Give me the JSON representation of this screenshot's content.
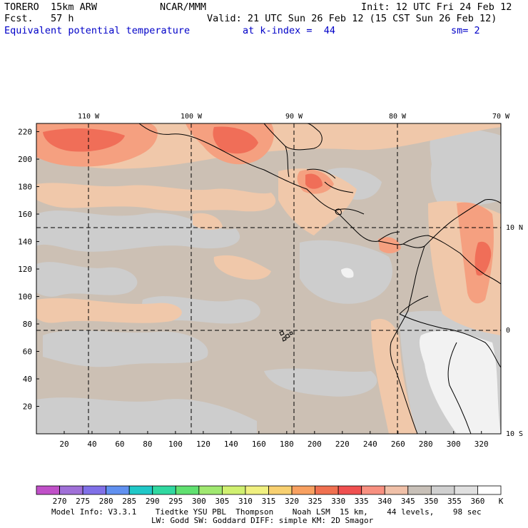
{
  "header": {
    "model": "TORERO  15km ARW",
    "org": "NCAR/MMM",
    "init": "Init: 12 UTC Fri 24 Feb 12",
    "fcst": "Fcst.   57 h",
    "valid": "Valid: 21 UTC Sun 26 Feb 12 (15 CST Sun 26 Feb 12)",
    "field": "Equivalent potential temperature",
    "level": "at k-index =  44",
    "smooth": "sm= 2"
  },
  "map": {
    "longitude_labels": [
      "110 W",
      "100 W",
      "90 W",
      "80 W",
      "70 W"
    ],
    "latitude_labels": [
      "10 N",
      "0",
      "10 S"
    ],
    "x_ticks": [
      "20",
      "40",
      "60",
      "80",
      "100",
      "120",
      "140",
      "160",
      "180",
      "200",
      "220",
      "240",
      "260",
      "280",
      "300",
      "320"
    ],
    "y_ticks": [
      "20",
      "40",
      "60",
      "80",
      "100",
      "120",
      "140",
      "160",
      "180",
      "200",
      "220"
    ],
    "x_range": [
      0,
      334
    ],
    "y_range": [
      0,
      226
    ],
    "colors": {
      "background_field": "#ccc0b4",
      "grey_field": "#cdcdcd",
      "light_orange": "#f0c8aa",
      "orange": "#f5a080",
      "red_orange": "#f06e58",
      "red": "#f05050",
      "white": "#f2f2f2"
    }
  },
  "colorbar": {
    "labels": [
      "270",
      "275",
      "280",
      "285",
      "290",
      "295",
      "300",
      "305",
      "310",
      "315",
      "320",
      "325",
      "330",
      "335",
      "340",
      "345",
      "350",
      "355",
      "360"
    ],
    "unit": "K",
    "colors": [
      "#c050c8",
      "#a070d8",
      "#8070e8",
      "#6090f0",
      "#20c8c8",
      "#30d8a0",
      "#60e070",
      "#a0e870",
      "#d0f070",
      "#f0f080",
      "#f8d070",
      "#f8a060",
      "#f07050",
      "#f05050",
      "#f89080",
      "#f0c0a8",
      "#c8c0b8",
      "#d0d0d0",
      "#e0e0e0",
      "#ffffff"
    ]
  },
  "footer": {
    "line1": "Model Info: V3.3.1    Tiedtke YSU PBL  Thompson    Noah LSM  15 km,    44 levels,    98 sec",
    "line2": "LW: Godd SW: Goddard DIFF: simple KM: 2D Smagor"
  }
}
